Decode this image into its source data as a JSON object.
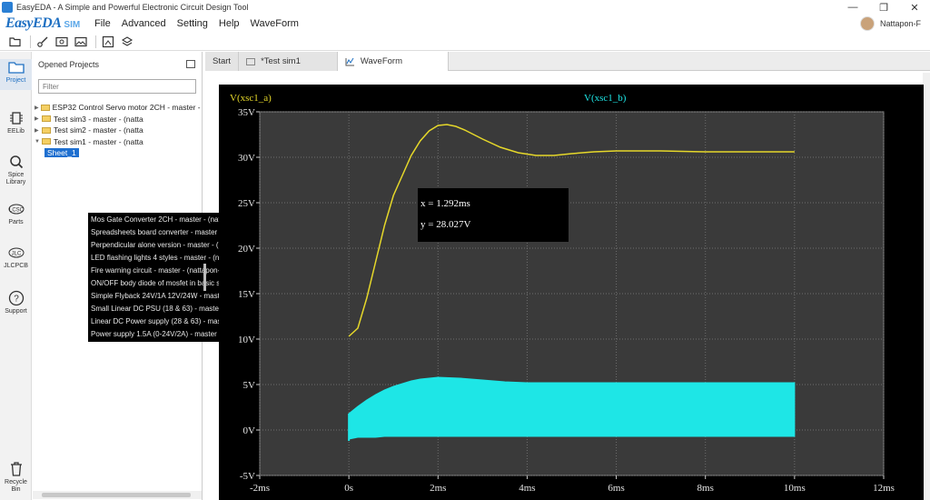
{
  "window": {
    "title": "EasyEDA - A Simple and Powerful Electronic Circuit Design Tool",
    "buttons": [
      "—",
      "❐",
      "✕"
    ]
  },
  "logo": {
    "name": "EasyEDA",
    "sub": "SIM"
  },
  "menu": [
    "File",
    "Advanced",
    "Setting",
    "Help",
    "WaveForm"
  ],
  "user": {
    "name": "Nattapon-F"
  },
  "toolbar_icons": [
    "open-folder-icon",
    "probe-icon",
    "image-icon",
    "picture-icon",
    "export-icon",
    "layers-icon"
  ],
  "leftbar": [
    {
      "label": "Project",
      "icon": "folder-icon",
      "active": true
    },
    {
      "label": "EELib",
      "icon": "chip-icon"
    },
    {
      "label": "Spice Library",
      "icon": "search-lib-icon"
    },
    {
      "label": "Parts",
      "icon": "lcsc-icon"
    },
    {
      "label": "JLCPCB",
      "icon": "jlc-icon"
    },
    {
      "label": "Support",
      "icon": "help-icon"
    },
    {
      "label": "Recycle Bin",
      "icon": "trash-icon"
    }
  ],
  "panel": {
    "title": "Opened Projects",
    "filter_placeholder": "Filter",
    "projects": [
      "ESP32 Control Servo motor 2CH - master - (natt",
      "Test sim3 - master - (natta",
      "Test sim2 - master - (natta",
      "Test sim1 - master - (natta"
    ],
    "sheet": "Sheet_1",
    "overlay_rows": [
      "Mos Gate Converter 2CH - master - (nattapon-F",
      "Spreadsheets board converter - master - (nattapo",
      "Perpendicular alone version - master - (nattapon-Krn",
      "LED flashing lights 4 styles - master - (nattapon",
      "Fire warning circuit - master - (nattapon-Krnitt)",
      "ON/OFF body diode of mosfet in basic symbol on",
      "Simple Flyback 24V/1A 12V/24W - master - (nat",
      "Small Linear DC PSU (18 & 63) - master - (nattap",
      "Linear DC Power supply (28 & 63) - master - (na",
      "Power supply 1.5A (0-24V/2A) - master - (nattapo"
    ]
  },
  "tabs": [
    {
      "label": "Start",
      "active": false,
      "icon": ""
    },
    {
      "label": "*Test sim1",
      "active": false,
      "icon": "folder-icon"
    },
    {
      "label": "WaveForm",
      "active": true,
      "icon": "waveform-icon"
    }
  ],
  "tooltip": {
    "x_text": "x = 1.292ms",
    "y_text": "y = 28.027V"
  },
  "colors": {
    "series_a": "#e6d82a",
    "series_b": "#1ee6e6",
    "plot_bg": "#3a3a3a",
    "outer_bg": "#000000",
    "grid": "#6e6e6e"
  },
  "chart_data": {
    "type": "line",
    "title": "",
    "xlabel": "",
    "ylabel": "",
    "xlim": [
      -2,
      12
    ],
    "ylim": [
      -5,
      35
    ],
    "x_unit": "ms",
    "y_unit": "V",
    "x_ticks": [
      "-2ms",
      "0s",
      "2ms",
      "4ms",
      "6ms",
      "8ms",
      "10ms",
      "12ms"
    ],
    "y_ticks": [
      "35V",
      "30V",
      "25V",
      "20V",
      "15V",
      "10V",
      "5V",
      "0V",
      "-5V"
    ],
    "grid": true,
    "legend": "top",
    "series": [
      {
        "name": "V(xsc1_a)",
        "x": [
          0,
          0.2,
          0.4,
          0.6,
          0.8,
          1.0,
          1.2,
          1.4,
          1.6,
          1.8,
          2.0,
          2.2,
          2.4,
          2.6,
          3.0,
          3.4,
          3.8,
          4.2,
          4.6,
          5.0,
          5.5,
          6.0,
          7.0,
          8.0,
          9.0,
          10.0
        ],
        "values": [
          10.3,
          11.2,
          14.5,
          18.5,
          22.5,
          25.8,
          28.0,
          30.2,
          31.8,
          32.9,
          33.5,
          33.6,
          33.4,
          33.0,
          32.0,
          31.1,
          30.5,
          30.2,
          30.2,
          30.4,
          30.6,
          30.7,
          30.7,
          30.6,
          30.6,
          30.6
        ],
        "color": "#e6d82a"
      },
      {
        "name": "V(xsc1_b)",
        "x": [
          0,
          0.2,
          0.4,
          0.6,
          0.8,
          1.0,
          1.2,
          1.4,
          1.6,
          1.8,
          2.0,
          2.5,
          3.0,
          3.5,
          4.0,
          5.0,
          6.0,
          7.0,
          8.0,
          9.0,
          10.0
        ],
        "values_high": [
          1.8,
          2.6,
          3.3,
          3.9,
          4.4,
          4.8,
          5.1,
          5.4,
          5.6,
          5.7,
          5.8,
          5.7,
          5.5,
          5.3,
          5.2,
          5.2,
          5.2,
          5.2,
          5.2,
          5.2,
          5.2
        ],
        "values_low": [
          -1.0,
          -0.8,
          -0.8,
          -0.8,
          -0.7,
          -0.7,
          -0.7,
          -0.7,
          -0.7,
          -0.7,
          -0.7,
          -0.7,
          -0.7,
          -0.7,
          -0.7,
          -0.7,
          -0.7,
          -0.7,
          -0.7,
          -0.7,
          -0.7
        ],
        "color": "#1ee6e6"
      }
    ]
  }
}
